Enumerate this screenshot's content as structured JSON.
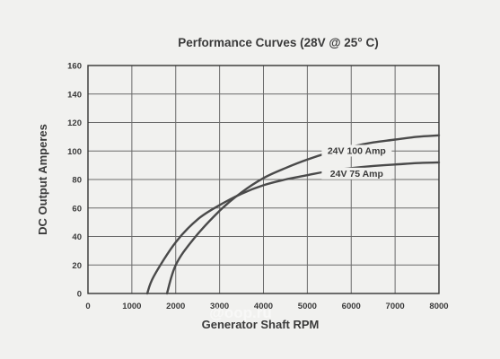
{
  "chart_data": {
    "type": "line",
    "title": "Performance Curves (28V @ 25° C)",
    "xlabel": "Generator Shaft RPM",
    "ylabel": "DC Output Amperes",
    "xlim": [
      0,
      8000
    ],
    "ylim": [
      0,
      160
    ],
    "x_ticks": [
      "0",
      "1000",
      "2000",
      "3000",
      "4000",
      "5000",
      "6000",
      "7000",
      "8000"
    ],
    "y_ticks": [
      "0",
      "20",
      "40",
      "60",
      "80",
      "100",
      "120",
      "140",
      "160"
    ],
    "grid": true,
    "series": [
      {
        "name": "24V 100 Amp",
        "x": [
          1800,
          2000,
          2400,
          3000,
          3500,
          4000,
          4500,
          5000,
          5500,
          6000,
          6500,
          7000,
          7500,
          8000
        ],
        "y": [
          0,
          20,
          38,
          58,
          71,
          81,
          88,
          94,
          99,
          103,
          106,
          108,
          110,
          111
        ]
      },
      {
        "name": "24V 75 Amp",
        "x": [
          1350,
          1500,
          2000,
          2500,
          3000,
          3500,
          4000,
          4500,
          5000,
          5500,
          6000,
          6500,
          7000,
          7500,
          8000
        ],
        "y": [
          0,
          12,
          36,
          52,
          62,
          70,
          76,
          80,
          83,
          86,
          88,
          89.5,
          90.5,
          91.5,
          92
        ]
      }
    ],
    "series_labels": [
      "24V 100 Amp",
      "24V 75 Amp"
    ],
    "annotation": "@oop.ru",
    "colors": {
      "line": "#4a4a4a",
      "grid": "#6a6a6a",
      "text": "#3a3a3a",
      "background": "#f1f1ef"
    }
  }
}
